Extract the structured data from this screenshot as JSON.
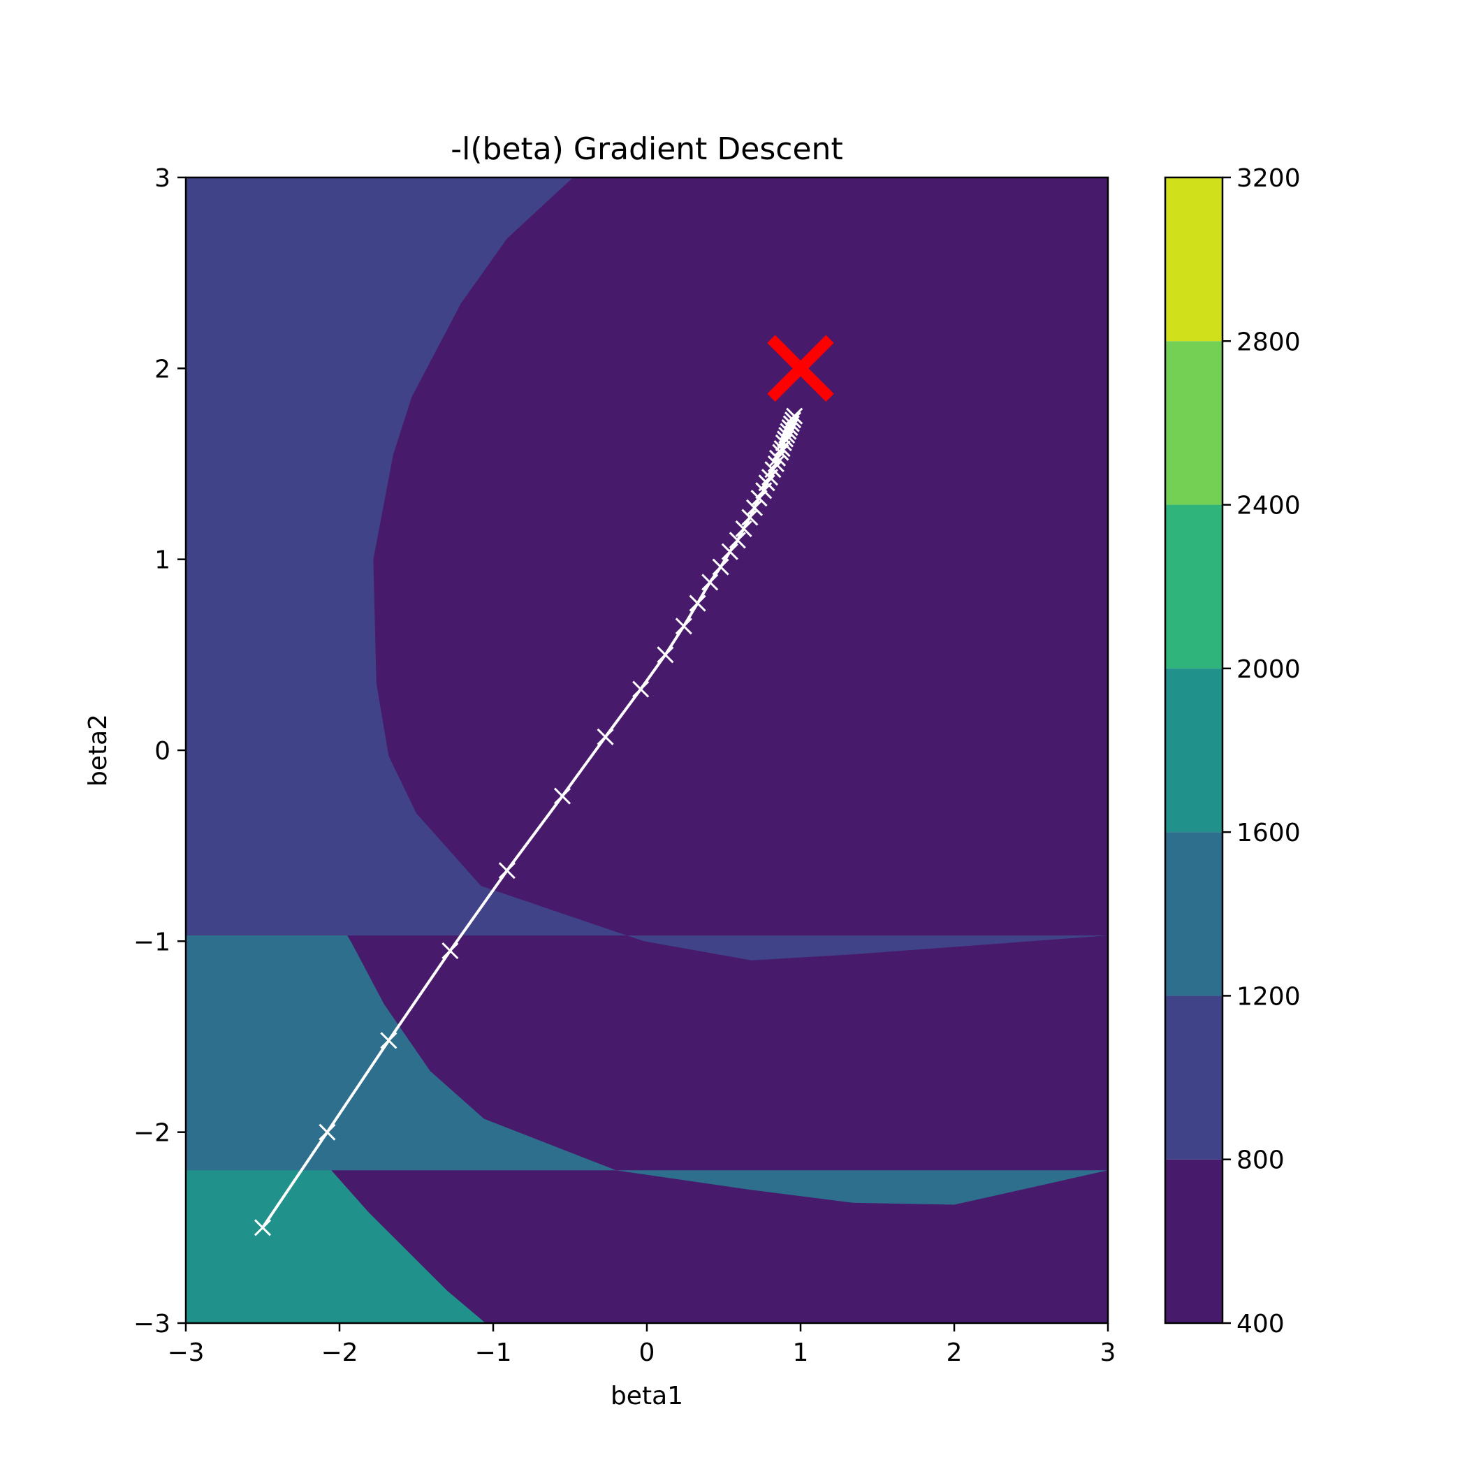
{
  "chart_data": {
    "type": "contour",
    "title": "-l(beta) Gradient Descent",
    "xlabel": "beta1",
    "ylabel": "beta2",
    "xlim": [
      -3,
      3
    ],
    "ylim": [
      -3,
      3
    ],
    "x_ticks": [
      -3,
      -2,
      -1,
      0,
      1,
      2,
      3
    ],
    "y_ticks": [
      -3,
      -2,
      -1,
      0,
      1,
      2,
      3
    ],
    "x_tick_labels": [
      "−3",
      "−2",
      "−1",
      "0",
      "1",
      "2",
      "3"
    ],
    "y_tick_labels": [
      "−3",
      "−2",
      "−1",
      "0",
      "1",
      "2",
      "3"
    ],
    "grid": false,
    "colormap": "viridis",
    "contour_levels": [
      400,
      800,
      1200,
      1600,
      2000,
      2400,
      2800,
      3200
    ],
    "colorbar_tick_labels": [
      "400",
      "800",
      "1200",
      "1600",
      "2000",
      "2400",
      "2800",
      "3200"
    ],
    "band_colors": [
      "#481a6c",
      "#404387",
      "#2e6f8e",
      "#21918c",
      "#2fb47c",
      "#74d055",
      "#d0e11c"
    ],
    "contour_boundaries": [
      {
        "level": 800,
        "points": [
          [
            -0.48,
            3
          ],
          [
            -0.91,
            2.68
          ],
          [
            -1.21,
            2.34
          ],
          [
            -1.53,
            1.85
          ],
          [
            -1.65,
            1.55
          ],
          [
            -1.78,
            1
          ],
          [
            -1.76,
            0.35
          ],
          [
            -1.68,
            -0.03
          ],
          [
            -1.5,
            -0.33
          ],
          [
            -1.08,
            -0.71
          ],
          [
            -0.02,
            -1.0
          ],
          [
            0.68,
            -1.1
          ],
          [
            1.32,
            -1.07
          ],
          [
            2.0,
            -1.03
          ],
          [
            3,
            -0.97
          ]
        ]
      },
      {
        "level": 1200,
        "points": [
          [
            -1.78,
            3
          ],
          [
            -1.99,
            2.72
          ],
          [
            -2.2,
            2.35
          ],
          [
            -2.33,
            1.66
          ],
          [
            -2.43,
            1.0
          ],
          [
            -2.41,
            0.35
          ],
          [
            -2.29,
            -0.3
          ],
          [
            -2.11,
            -0.75
          ],
          [
            -1.92,
            -1.01
          ],
          [
            -1.71,
            -1.33
          ],
          [
            -1.41,
            -1.68
          ],
          [
            -1.06,
            -1.93
          ],
          [
            -0.2,
            -2.2
          ],
          [
            0.66,
            -2.3
          ],
          [
            1.34,
            -2.37
          ],
          [
            2.0,
            -2.38
          ],
          [
            3,
            -2.2
          ]
        ]
      },
      {
        "level": 1600,
        "points": [
          [
            -2.78,
            3
          ],
          [
            -2.92,
            2.68
          ],
          [
            -3,
            2.44
          ],
          [
            -3,
            1.0
          ],
          [
            -3,
            0.39
          ],
          [
            -2.96,
            -0.04
          ],
          [
            -2.89,
            -0.55
          ],
          [
            -2.78,
            -1.0
          ],
          [
            -2.62,
            -1.41
          ],
          [
            -2.37,
            -1.83
          ],
          [
            -2.13,
            -2.13
          ],
          [
            -1.81,
            -2.42
          ],
          [
            -1.3,
            -2.83
          ],
          [
            -1.05,
            -3
          ]
        ]
      },
      {
        "level": 2000,
        "points": [
          [
            -3.63,
            3
          ],
          [
            -3.74,
            2.52
          ],
          [
            -3.83,
            2.16
          ],
          [
            -3.88,
            1.0
          ],
          [
            -3.92,
            0.2
          ],
          [
            -3.95,
            -0.6
          ],
          [
            -3.99,
            -1.3
          ],
          [
            -4.05,
            -2.0
          ],
          [
            -4.1,
            -3
          ]
        ]
      },
      {
        "level": 2400,
        "points": [
          [
            -3,
            -1.16
          ],
          [
            -2.7,
            -1.66
          ],
          [
            -2.34,
            -2.16
          ],
          [
            -2.0,
            -2.6
          ],
          [
            -1.79,
            -2.86
          ],
          [
            -1.67,
            -3
          ]
        ]
      },
      {
        "level": 2800,
        "points": [
          [
            -3,
            -2.34
          ],
          [
            -2.72,
            -2.7
          ],
          [
            -2.44,
            -3
          ]
        ]
      }
    ],
    "series": [
      {
        "type": "line",
        "marker": "x",
        "color": "#ffffff",
        "x": [
          -2.5,
          -2.08,
          -1.68,
          -1.28,
          -0.91,
          -0.55,
          -0.27,
          -0.04,
          0.12,
          0.24,
          0.33,
          0.41,
          0.48,
          0.54,
          0.59,
          0.63,
          0.67,
          0.7,
          0.73,
          0.76,
          0.78,
          0.8,
          0.82,
          0.84,
          0.85,
          0.87,
          0.88,
          0.89,
          0.9,
          0.91,
          0.92,
          0.93,
          0.94,
          0.95,
          0.96
        ],
        "y": [
          -2.5,
          -2.0,
          -1.52,
          -1.05,
          -0.63,
          -0.24,
          0.07,
          0.32,
          0.5,
          0.65,
          0.77,
          0.88,
          0.96,
          1.04,
          1.1,
          1.16,
          1.22,
          1.27,
          1.32,
          1.36,
          1.4,
          1.43,
          1.47,
          1.5,
          1.53,
          1.56,
          1.58,
          1.61,
          1.63,
          1.65,
          1.67,
          1.69,
          1.71,
          1.73,
          1.75
        ]
      },
      {
        "type": "scatter",
        "marker": "x",
        "color": "#ff0000",
        "x": [
          1.0
        ],
        "y": [
          2.0
        ]
      }
    ]
  }
}
